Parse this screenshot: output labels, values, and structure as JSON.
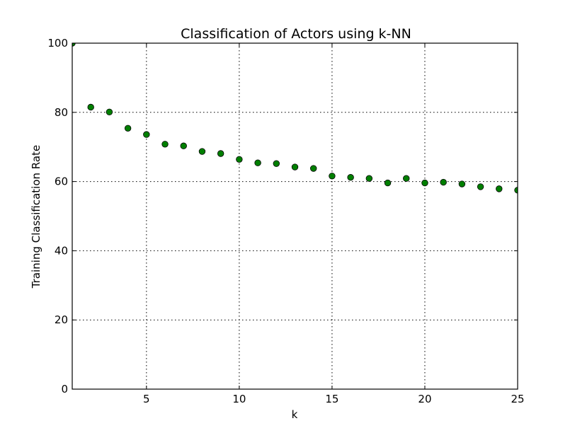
{
  "chart_data": {
    "type": "scatter",
    "title": "Classification of Actors using k-NN",
    "xlabel": "k",
    "ylabel": "Training Classification Rate",
    "xlim": [
      1,
      25
    ],
    "ylim": [
      0,
      100
    ],
    "xticks": [
      5,
      10,
      15,
      20,
      25
    ],
    "yticks": [
      0,
      20,
      40,
      60,
      80,
      100
    ],
    "grid": true,
    "marker_color": "#007f00",
    "series": [
      {
        "x": [
          1,
          2,
          3,
          4,
          5,
          6,
          7,
          8,
          9,
          10,
          11,
          12,
          13,
          14,
          15,
          16,
          17,
          18,
          19,
          20,
          21,
          22,
          23,
          24,
          25
        ],
        "y": [
          100,
          81.5,
          80.1,
          75.4,
          73.6,
          70.8,
          70.3,
          68.7,
          68.1,
          66.4,
          65.4,
          65.2,
          64.2,
          63.8,
          61.6,
          61.2,
          60.9,
          59.6,
          60.9,
          59.6,
          59.8,
          59.3,
          58.5,
          57.9,
          57.5
        ]
      }
    ]
  }
}
